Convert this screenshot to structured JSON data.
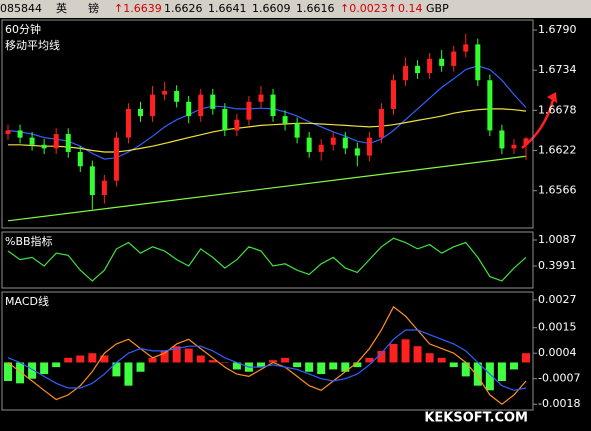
{
  "header": {
    "code": "085844",
    "name1": "英",
    "name2": "镑",
    "last": "↑1.6639",
    "open": "1.6626",
    "high": "1.6641",
    "low": "1.6609",
    "close": "1.6616",
    "change": "↑0.0023↑",
    "pct": "0.14",
    "unit": "GBP"
  },
  "watermark": "KEKSOFT.COM",
  "chart_data": [
    {
      "type": "candlestick",
      "title": "60分钟",
      "subtitle": "移动平均线",
      "up_color": "#ff2020",
      "down_color": "#30ff30",
      "open": [
        1.6645,
        1.665,
        1.664,
        1.663,
        1.6625,
        1.6645,
        1.662,
        1.66,
        1.656,
        1.658,
        1.664,
        1.668,
        1.667,
        1.67,
        1.6705,
        1.669,
        1.667,
        1.67,
        1.668,
        1.665,
        1.6665,
        1.669,
        1.67,
        1.667,
        1.666,
        1.664,
        1.662,
        1.663,
        1.664,
        1.6625,
        1.6615,
        1.664,
        1.668,
        1.672,
        1.674,
        1.673,
        1.675,
        1.674,
        1.676,
        1.677,
        1.672,
        1.665,
        1.6625,
        1.663
      ],
      "high": [
        1.6658,
        1.6658,
        1.6648,
        1.6638,
        1.6653,
        1.6653,
        1.6628,
        1.6608,
        1.6588,
        1.6648,
        1.6688,
        1.669,
        1.6712,
        1.6718,
        1.6713,
        1.6698,
        1.6708,
        1.6708,
        1.6688,
        1.6673,
        1.6698,
        1.6712,
        1.6708,
        1.6678,
        1.6668,
        1.6648,
        1.6638,
        1.6648,
        1.6648,
        1.6633,
        1.6648,
        1.6688,
        1.6728,
        1.6752,
        1.6748,
        1.6758,
        1.6762,
        1.6768,
        1.6785,
        1.6778,
        1.6728,
        1.6658,
        1.6638,
        1.6641
      ],
      "low": [
        1.6637,
        1.6632,
        1.6622,
        1.6617,
        1.6617,
        1.6612,
        1.6592,
        1.654,
        1.6548,
        1.6572,
        1.6632,
        1.6662,
        1.6662,
        1.6692,
        1.6682,
        1.666,
        1.6662,
        1.6672,
        1.6642,
        1.6642,
        1.6657,
        1.6682,
        1.6662,
        1.665,
        1.6632,
        1.6612,
        1.6608,
        1.6622,
        1.6617,
        1.66,
        1.6607,
        1.6632,
        1.6672,
        1.6712,
        1.6722,
        1.6722,
        1.6732,
        1.6732,
        1.6752,
        1.6712,
        1.6642,
        1.6617,
        1.6617,
        1.6609
      ],
      "close": [
        1.665,
        1.664,
        1.663,
        1.6625,
        1.6645,
        1.662,
        1.66,
        1.656,
        1.658,
        1.664,
        1.668,
        1.667,
        1.67,
        1.6705,
        1.669,
        1.667,
        1.67,
        1.668,
        1.665,
        1.6665,
        1.669,
        1.67,
        1.667,
        1.666,
        1.664,
        1.662,
        1.663,
        1.664,
        1.6625,
        1.6615,
        1.664,
        1.668,
        1.672,
        1.674,
        1.673,
        1.675,
        1.674,
        1.676,
        1.677,
        1.672,
        1.665,
        1.6625,
        1.663,
        1.6639
      ],
      "series": [
        {
          "color": "#3060ff",
          "values": [
            1.665,
            1.6648,
            1.6645,
            1.664,
            1.6638,
            1.6635,
            1.6628,
            1.6618,
            1.661,
            1.6612,
            1.662,
            1.663,
            1.6642,
            1.6655,
            1.6665,
            1.6672,
            1.668,
            1.6684,
            1.6683,
            1.668,
            1.668,
            1.6681,
            1.668,
            1.6676,
            1.667,
            1.6662,
            1.6655,
            1.6648,
            1.6642,
            1.6635,
            1.6632,
            1.6638,
            1.665,
            1.6665,
            1.668,
            1.6695,
            1.671,
            1.6722,
            1.6735,
            1.674,
            1.6735,
            1.672,
            1.67,
            1.6682
          ]
        },
        {
          "color": "#f0e040",
          "values": [
            1.663,
            1.663,
            1.6629,
            1.6628,
            1.6628,
            1.6627,
            1.6625,
            1.6622,
            1.662,
            1.662,
            1.6622,
            1.6625,
            1.6628,
            1.6632,
            1.6636,
            1.664,
            1.6644,
            1.6648,
            1.6651,
            1.6653,
            1.6655,
            1.6657,
            1.6658,
            1.6659,
            1.666,
            1.666,
            1.6659,
            1.6658,
            1.6657,
            1.6656,
            1.6655,
            1.6656,
            1.6658,
            1.6661,
            1.6664,
            1.6667,
            1.667,
            1.6674,
            1.6677,
            1.6679,
            1.668,
            1.668,
            1.6679,
            1.6677
          ]
        }
      ],
      "trendline": {
        "color": "#80ff40",
        "x": [
          0,
          43
        ],
        "values": [
          1.6524,
          1.6614
        ]
      },
      "ylim": [
        1.6514,
        1.6804
      ],
      "yticks": [
        {
          "value": 1.679,
          "label": "1.6790"
        },
        1.6734,
        1.6678,
        1.6622,
        1.6566
      ]
    },
    {
      "type": "line",
      "title": "%BB指标",
      "series": [
        {
          "color": "#40e040",
          "values": [
            0.75,
            0.55,
            0.6,
            0.4,
            0.7,
            0.65,
            0.3,
            0.05,
            0.3,
            0.8,
            0.95,
            0.7,
            0.85,
            0.75,
            0.55,
            0.4,
            0.8,
            0.6,
            0.35,
            0.55,
            0.85,
            0.75,
            0.4,
            0.45,
            0.3,
            0.2,
            0.45,
            0.6,
            0.35,
            0.25,
            0.55,
            0.85,
            1.05,
            0.95,
            0.8,
            0.9,
            0.7,
            0.85,
            0.95,
            0.6,
            0.15,
            0.05,
            0.35,
            0.6
          ]
        }
      ],
      "ylim": [
        -0.117,
        1.1963
      ],
      "yticks": [
        1.0087,
        0.3991
      ]
    },
    {
      "type": "macd",
      "title": "MACD线",
      "up_color": "#ff2020",
      "down_color": "#40ff40",
      "values": [
        -0.0008,
        -0.0009,
        -0.0007,
        -0.0005,
        -0.0002,
        0.0002,
        0.0003,
        0.0004,
        0.0003,
        -0.0006,
        -0.001,
        -0.0004,
        0.0002,
        0.0005,
        0.0007,
        0.0006,
        0.0003,
        0.0001,
        0.0,
        -0.0003,
        -0.0004,
        -0.0002,
        0.0001,
        0.0002,
        -0.0002,
        -0.0004,
        -0.0005,
        -0.0003,
        -0.0004,
        -0.0002,
        0.0002,
        0.0005,
        0.0008,
        0.001,
        0.0007,
        0.0004,
        0.0002,
        -0.0002,
        -0.0006,
        -0.001,
        -0.0012,
        -0.0008,
        -0.0003,
        0.0004
      ],
      "series": [
        {
          "color": "#ff9020",
          "values": [
            0.0,
            -0.0004,
            -0.0008,
            -0.0012,
            -0.0016,
            -0.0014,
            -0.001,
            -0.0004,
            0.0004,
            0.0008,
            0.001,
            0.0006,
            0.0002,
            0.0004,
            0.0008,
            0.001,
            0.0006,
            0.0002,
            -0.0002,
            -0.0005,
            -0.0006,
            -0.0003,
            0.0,
            -0.0002,
            -0.0006,
            -0.001,
            -0.0012,
            -0.0008,
            -0.0004,
            0.0,
            0.0006,
            0.0014,
            0.0024,
            0.002,
            0.0014,
            0.0008,
            0.0006,
            0.0004,
            0.0,
            -0.0006,
            -0.0014,
            -0.0018,
            -0.0014,
            -0.0008
          ]
        },
        {
          "color": "#3060ff",
          "values": [
            0.0002,
            0.0,
            -0.0003,
            -0.0006,
            -0.0009,
            -0.0011,
            -0.0011,
            -0.0009,
            -0.0005,
            0.0,
            0.0004,
            0.0006,
            0.0005,
            0.0005,
            0.0006,
            0.0007,
            0.0007,
            0.0005,
            0.0002,
            0.0,
            -0.0002,
            -0.0002,
            -0.0001,
            -0.0002,
            -0.0003,
            -0.0005,
            -0.0007,
            -0.0008,
            -0.0007,
            -0.0005,
            -0.0001,
            0.0004,
            0.001,
            0.0014,
            0.0014,
            0.0012,
            0.001,
            0.0008,
            0.0005,
            0.0,
            -0.0005,
            -0.001,
            -0.0012,
            -0.0011
          ]
        }
      ],
      "ylim": [
        -0.00205,
        0.00304
      ],
      "yticks": [
        0.0027,
        0.0015,
        0.0004,
        -0.0007,
        -0.0018
      ]
    }
  ]
}
